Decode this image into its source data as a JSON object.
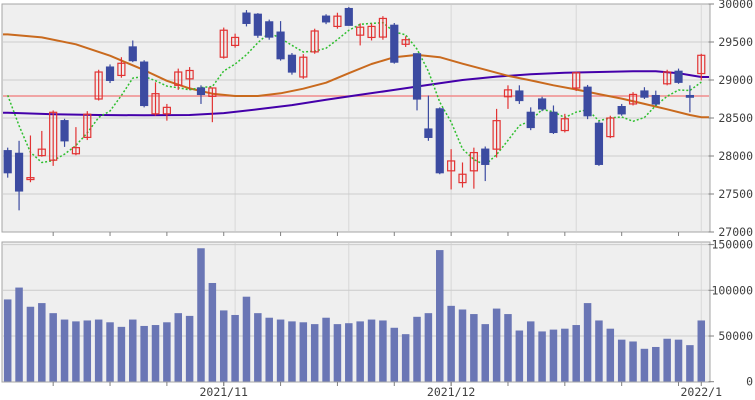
{
  "chart_data": {
    "type": "candlestick_with_volume",
    "title": "",
    "price_axis": {
      "min": 27000,
      "max": 30000,
      "tick_step": 500,
      "ticks": [
        30000,
        29500,
        29000,
        28500,
        28000,
        27500,
        27000
      ]
    },
    "volume_axis": {
      "min": 0,
      "max": 153000,
      "ticks": [
        150000,
        100000,
        50000,
        0
      ]
    },
    "x_axis": {
      "month_labels": [
        {
          "index": 19,
          "label": "2021/11"
        },
        {
          "index": 39,
          "label": "2021/12"
        },
        {
          "index": 61,
          "label": "2022/1"
        }
      ],
      "minor_tick_indices": [
        4,
        9,
        14,
        19,
        24,
        29,
        34,
        39,
        44,
        49,
        54,
        59
      ],
      "vertical_gridline_indices": [
        20,
        30,
        39,
        50,
        61
      ]
    },
    "reference_line_price": 28790,
    "candles": [
      [
        28070,
        28110,
        27715,
        27780
      ],
      [
        28035,
        28200,
        27285,
        27540
      ],
      [
        27690,
        28270,
        27655,
        27715
      ],
      [
        28005,
        28330,
        27990,
        28090
      ],
      [
        27945,
        28600,
        27870,
        28575
      ],
      [
        28465,
        28490,
        28120,
        28200
      ],
      [
        28030,
        28380,
        28010,
        28110
      ],
      [
        28245,
        28590,
        28210,
        28550
      ],
      [
        28750,
        29135,
        28730,
        29105
      ],
      [
        29170,
        29205,
        28960,
        28995
      ],
      [
        29060,
        29300,
        29030,
        29220
      ],
      [
        29435,
        29520,
        29235,
        29255
      ],
      [
        29235,
        29260,
        28640,
        28665
      ],
      [
        28555,
        28970,
        28530,
        28820
      ],
      [
        28555,
        28685,
        28465,
        28640
      ],
      [
        28930,
        29150,
        28870,
        29105
      ],
      [
        29015,
        29170,
        28870,
        29125
      ],
      [
        28895,
        28930,
        28685,
        28810
      ],
      [
        28785,
        28900,
        28445,
        28895
      ],
      [
        29300,
        29690,
        29280,
        29655
      ],
      [
        29455,
        29610,
        29425,
        29560
      ],
      [
        29880,
        29920,
        29705,
        29745
      ],
      [
        29865,
        29880,
        29555,
        29590
      ],
      [
        29765,
        29795,
        29530,
        29565
      ],
      [
        29630,
        29775,
        29255,
        29280
      ],
      [
        29325,
        29355,
        29070,
        29105
      ],
      [
        29040,
        29340,
        29015,
        29300
      ],
      [
        29370,
        29675,
        29345,
        29645
      ],
      [
        29840,
        29865,
        29735,
        29765
      ],
      [
        29705,
        29885,
        29675,
        29840
      ],
      [
        29940,
        29960,
        29715,
        29720
      ],
      [
        29590,
        29745,
        29455,
        29695
      ],
      [
        29560,
        29745,
        29520,
        29705
      ],
      [
        29565,
        29840,
        29530,
        29810
      ],
      [
        29720,
        29750,
        29215,
        29235
      ],
      [
        29470,
        29575,
        29435,
        29530
      ],
      [
        29345,
        29350,
        28600,
        28750
      ],
      [
        28355,
        28795,
        28200,
        28245
      ],
      [
        28620,
        28640,
        27760,
        27780
      ],
      [
        27805,
        28090,
        27560,
        27935
      ],
      [
        27650,
        27915,
        27585,
        27760
      ],
      [
        27805,
        28110,
        27570,
        28045
      ],
      [
        28090,
        28125,
        27670,
        27890
      ],
      [
        28090,
        28620,
        27980,
        28465
      ],
      [
        28780,
        28930,
        28620,
        28870
      ],
      [
        28855,
        28930,
        28685,
        28730
      ],
      [
        28575,
        28640,
        28340,
        28375
      ],
      [
        28750,
        28780,
        28590,
        28620
      ],
      [
        28575,
        28665,
        28290,
        28310
      ],
      [
        28335,
        28555,
        28310,
        28490
      ],
      [
        28895,
        29110,
        28855,
        29095
      ],
      [
        28905,
        28935,
        28485,
        28530
      ],
      [
        28430,
        28455,
        27870,
        27890
      ],
      [
        28255,
        28530,
        28235,
        28500
      ],
      [
        28650,
        28685,
        28530,
        28555
      ],
      [
        28685,
        28840,
        28665,
        28810
      ],
      [
        28855,
        28905,
        28750,
        28775
      ],
      [
        28795,
        28860,
        28665,
        28685
      ],
      [
        28950,
        29135,
        28930,
        29105
      ],
      [
        29115,
        29150,
        28950,
        28970
      ],
      [
        28795,
        28930,
        28575,
        28775
      ],
      [
        29085,
        29345,
        28995,
        29325
      ]
    ],
    "volumes": [
      90000,
      103000,
      82000,
      86000,
      75000,
      68000,
      66000,
      67000,
      68000,
      65000,
      60000,
      68000,
      61000,
      62000,
      65000,
      75000,
      72000,
      146000,
      108000,
      78000,
      73000,
      93000,
      75000,
      70000,
      68000,
      66000,
      65000,
      63000,
      70000,
      63000,
      64000,
      66000,
      68000,
      67000,
      59000,
      52000,
      71000,
      75000,
      144000,
      83000,
      79000,
      74000,
      63000,
      80000,
      74000,
      56000,
      66000,
      55000,
      57000,
      58000,
      62000,
      86000,
      67000,
      58000,
      46000,
      44000,
      36000,
      38000,
      47000,
      46000,
      40000,
      67000
    ],
    "ma5_lead_in_closes": [
      29544,
      29453,
      28771,
      28445
    ],
    "ma25_points": [
      [
        0,
        29600
      ],
      [
        3,
        29560
      ],
      [
        6,
        29470
      ],
      [
        9,
        29320
      ],
      [
        12,
        29130
      ],
      [
        14,
        28990
      ],
      [
        16,
        28890
      ],
      [
        18,
        28820
      ],
      [
        20,
        28790
      ],
      [
        22,
        28790
      ],
      [
        24,
        28825
      ],
      [
        26,
        28885
      ],
      [
        28,
        28965
      ],
      [
        30,
        29090
      ],
      [
        32,
        29210
      ],
      [
        34,
        29300
      ],
      [
        36,
        29330
      ],
      [
        38,
        29300
      ],
      [
        40,
        29215
      ],
      [
        42,
        29135
      ],
      [
        44,
        29055
      ],
      [
        46,
        28995
      ],
      [
        48,
        28930
      ],
      [
        50,
        28875
      ],
      [
        52,
        28815
      ],
      [
        54,
        28755
      ],
      [
        56,
        28685
      ],
      [
        58,
        28615
      ],
      [
        60,
        28540
      ],
      [
        61,
        28510
      ]
    ],
    "ma75_points": [
      [
        0,
        28570
      ],
      [
        4,
        28550
      ],
      [
        8,
        28540
      ],
      [
        12,
        28535
      ],
      [
        16,
        28540
      ],
      [
        19,
        28565
      ],
      [
        22,
        28615
      ],
      [
        25,
        28670
      ],
      [
        28,
        28740
      ],
      [
        31,
        28805
      ],
      [
        34,
        28870
      ],
      [
        37,
        28935
      ],
      [
        40,
        29000
      ],
      [
        43,
        29045
      ],
      [
        46,
        29075
      ],
      [
        49,
        29095
      ],
      [
        52,
        29105
      ],
      [
        55,
        29115
      ],
      [
        57,
        29115
      ],
      [
        59,
        29090
      ],
      [
        60,
        29065
      ],
      [
        61,
        29040
      ]
    ],
    "colors": {
      "up_candle": "#e23333",
      "down_candle": "#3c4ba1",
      "volume_bar": "#6a76b5",
      "ma5": "#2fbf2f",
      "ma25": "#c96a1e",
      "ma75": "#4400aa",
      "reference_line": "#f08c8c",
      "panel_bg": "#efefef",
      "grid": "#cccccc",
      "grid_vertical": "#d8d8d8",
      "panel_border": "#a6a6a6",
      "axis_text": "#3f3f3f",
      "tick": "#808080"
    }
  }
}
